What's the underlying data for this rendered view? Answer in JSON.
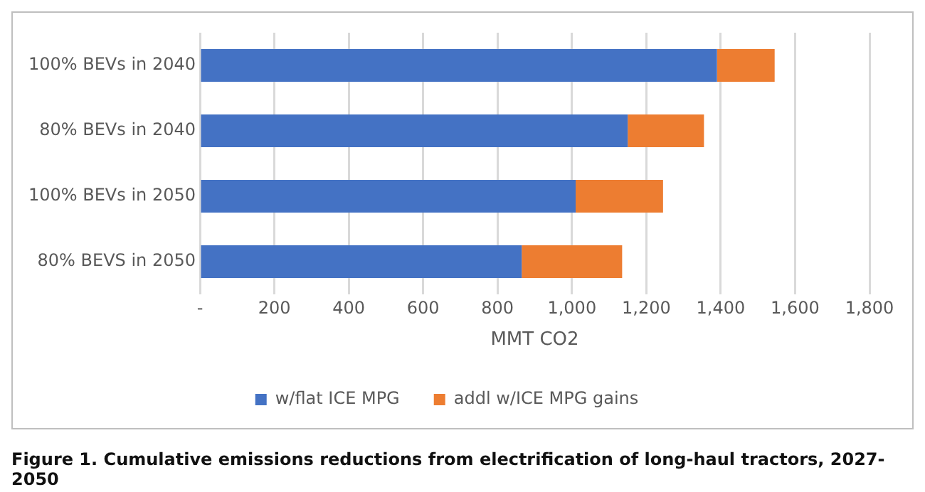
{
  "chart_data": {
    "type": "bar",
    "orientation": "horizontal",
    "stacked": true,
    "categories": [
      "100% BEVs in 2040",
      "80% BEVs in 2040",
      "100% BEVs in 2050",
      "80% BEVS in 2050"
    ],
    "series": [
      {
        "name": "w/flat ICE MPG",
        "color": "#4472c4",
        "values": [
          1390,
          1150,
          1010,
          865
        ]
      },
      {
        "name": "addl w/ICE MPG gains",
        "color": "#ed7d31",
        "values": [
          155,
          205,
          235,
          270
        ]
      }
    ],
    "xlabel": "MMT CO2",
    "xlim": [
      0,
      1800
    ],
    "xticks": [
      {
        "value": 0,
        "label": "-"
      },
      200,
      400,
      600,
      800,
      {
        "value": 1000,
        "label": "1,000"
      },
      {
        "value": 1200,
        "label": "1,200"
      },
      {
        "value": 1400,
        "label": "1,400"
      },
      {
        "value": 1600,
        "label": "1,600"
      },
      {
        "value": 1800,
        "label": "1,800"
      }
    ],
    "grid": "x",
    "legend": "bottom",
    "annotations": [
      "Figure 1. Cumulative emissions reductions from electrification of long-haul tractors, 2027-2050"
    ]
  }
}
